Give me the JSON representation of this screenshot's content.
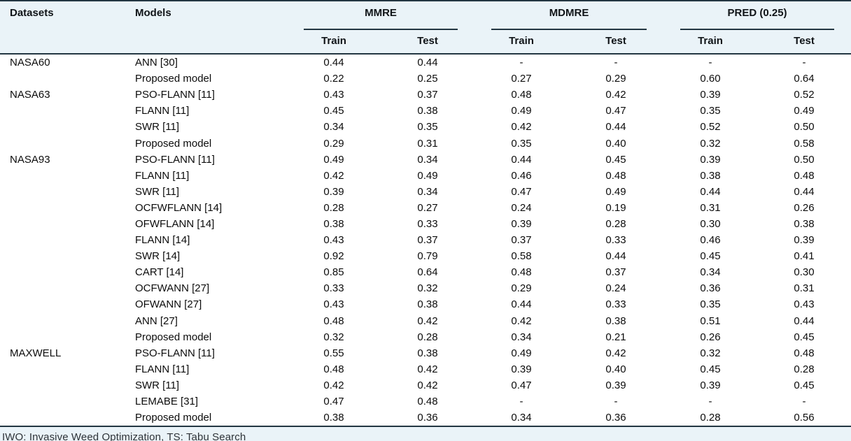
{
  "table": {
    "header": {
      "datasets_label": "Datasets",
      "models_label": "Models",
      "groups": [
        {
          "label": "MMRE",
          "sub": [
            "Train",
            "Test"
          ]
        },
        {
          "label": "MDMRE",
          "sub": [
            "Train",
            "Test"
          ]
        },
        {
          "label": "PRED (0.25)",
          "sub": [
            "Train",
            "Test"
          ]
        }
      ]
    },
    "rows": [
      {
        "dataset": "NASA60",
        "model": "ANN [30]",
        "values": [
          "0.44",
          "0.44",
          "-",
          "-",
          "-",
          "-"
        ]
      },
      {
        "dataset": "",
        "model": "Proposed model",
        "values": [
          "0.22",
          "0.25",
          "0.27",
          "0.29",
          "0.60",
          "0.64"
        ]
      },
      {
        "dataset": "NASA63",
        "model": "PSO-FLANN [11]",
        "values": [
          "0.43",
          "0.37",
          "0.48",
          "0.42",
          "0.39",
          "0.52"
        ]
      },
      {
        "dataset": "",
        "model": "FLANN [11]",
        "values": [
          "0.45",
          "0.38",
          "0.49",
          "0.47",
          "0.35",
          "0.49"
        ]
      },
      {
        "dataset": "",
        "model": "SWR [11]",
        "values": [
          "0.34",
          "0.35",
          "0.42",
          "0.44",
          "0.52",
          "0.50"
        ]
      },
      {
        "dataset": "",
        "model": "Proposed model",
        "values": [
          "0.29",
          "0.31",
          "0.35",
          "0.40",
          "0.32",
          "0.58"
        ]
      },
      {
        "dataset": "NASA93",
        "model": "PSO-FLANN [11]",
        "values": [
          "0.49",
          "0.34",
          "0.44",
          "0.45",
          "0.39",
          "0.50"
        ]
      },
      {
        "dataset": "",
        "model": "FLANN [11]",
        "values": [
          "0.42",
          "0.49",
          "0.46",
          "0.48",
          "0.38",
          "0.48"
        ]
      },
      {
        "dataset": "",
        "model": "SWR [11]",
        "values": [
          "0.39",
          "0.34",
          "0.47",
          "0.49",
          "0.44",
          "0.44"
        ]
      },
      {
        "dataset": "",
        "model": "OCFWFLANN [14]",
        "values": [
          "0.28",
          "0.27",
          "0.24",
          "0.19",
          "0.31",
          "0.26"
        ]
      },
      {
        "dataset": "",
        "model": "OFWFLANN [14]",
        "values": [
          "0.38",
          "0.33",
          "0.39",
          "0.28",
          "0.30",
          "0.38"
        ]
      },
      {
        "dataset": "",
        "model": "FLANN [14]",
        "values": [
          "0.43",
          "0.37",
          "0.37",
          "0.33",
          "0.46",
          "0.39"
        ]
      },
      {
        "dataset": "",
        "model": "SWR [14]",
        "values": [
          "0.92",
          "0.79",
          "0.58",
          "0.44",
          "0.45",
          "0.41"
        ]
      },
      {
        "dataset": "",
        "model": "CART [14]",
        "values": [
          "0.85",
          "0.64",
          "0.48",
          "0.37",
          "0.34",
          "0.30"
        ]
      },
      {
        "dataset": "",
        "model": "OCFWANN [27]",
        "values": [
          "0.33",
          "0.32",
          "0.29",
          "0.24",
          "0.36",
          "0.31"
        ]
      },
      {
        "dataset": "",
        "model": "OFWANN [27]",
        "values": [
          "0.43",
          "0.38",
          "0.44",
          "0.33",
          "0.35",
          "0.43"
        ]
      },
      {
        "dataset": "",
        "model": "ANN [27]",
        "values": [
          "0.48",
          "0.42",
          "0.42",
          "0.38",
          "0.51",
          "0.44"
        ]
      },
      {
        "dataset": "",
        "model": "Proposed model",
        "values": [
          "0.32",
          "0.28",
          "0.34",
          "0.21",
          "0.26",
          "0.45"
        ]
      },
      {
        "dataset": "MAXWELL",
        "model": "PSO-FLANN [11]",
        "values": [
          "0.55",
          "0.38",
          "0.49",
          "0.42",
          "0.32",
          "0.48"
        ]
      },
      {
        "dataset": "",
        "model": "FLANN [11]",
        "values": [
          "0.48",
          "0.42",
          "0.39",
          "0.40",
          "0.45",
          "0.28"
        ]
      },
      {
        "dataset": "",
        "model": "SWR [11]",
        "values": [
          "0.42",
          "0.42",
          "0.47",
          "0.39",
          "0.39",
          "0.45"
        ]
      },
      {
        "dataset": "",
        "model": "LEMABE [31]",
        "values": [
          "0.47",
          "0.48",
          "-",
          "-",
          "-",
          "-"
        ]
      },
      {
        "dataset": "",
        "model": "Proposed model",
        "values": [
          "0.38",
          "0.36",
          "0.34",
          "0.36",
          "0.28",
          "0.56"
        ]
      }
    ],
    "footnote": "IWO: Invasive Weed Optimization, TS: Tabu Search"
  },
  "colors": {
    "band_bg": "#eaf3f8",
    "rule": "#233642",
    "header_text": "#101418"
  }
}
